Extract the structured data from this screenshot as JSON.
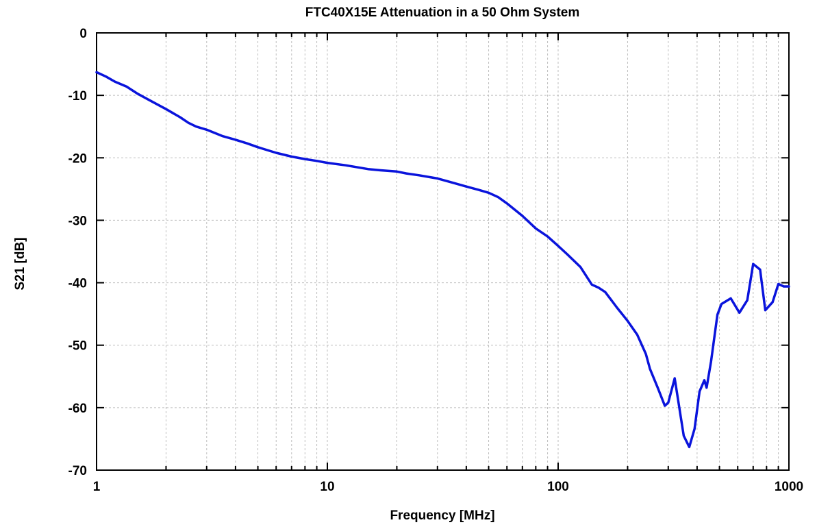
{
  "chart_data": {
    "type": "line",
    "title": "FTC40X15E Attenuation in a 50 Ohm System",
    "xlabel": "Frequency [MHz]",
    "ylabel": "S21 [dB]",
    "x_scale": "log",
    "xlim": [
      1,
      1000
    ],
    "ylim": [
      -70,
      0
    ],
    "x_ticks": [
      1,
      10,
      100,
      1000
    ],
    "x_tick_labels": [
      "1",
      "10",
      "100",
      "1000"
    ],
    "y_ticks": [
      0,
      -10,
      -20,
      -30,
      -40,
      -50,
      -60,
      -70
    ],
    "y_tick_labels": [
      "0",
      "-10",
      "-20",
      "-30",
      "-40",
      "-50",
      "-60",
      "-70"
    ],
    "grid": true,
    "legend": "none",
    "colors": {
      "series": "#0a14dc",
      "grid": "#bdbdbd",
      "axis": "#000000"
    },
    "series": [
      {
        "x": [
          1,
          1.1,
          1.2,
          1.35,
          1.5,
          1.7,
          2,
          2.3,
          2.5,
          2.7,
          3,
          3.5,
          4,
          4.5,
          5,
          6,
          7,
          8,
          9,
          10,
          12,
          15,
          17,
          20,
          22,
          25,
          30,
          35,
          40,
          45,
          50,
          55,
          60,
          70,
          80,
          90,
          100,
          110,
          125,
          140,
          150,
          160,
          180,
          200,
          220,
          240,
          250,
          270,
          290,
          300,
          320,
          350,
          370,
          390,
          410,
          430,
          440,
          460,
          490,
          510,
          560,
          610,
          660,
          700,
          750,
          790,
          850,
          900,
          950,
          1000
        ],
        "y": [
          -6.3,
          -7.0,
          -7.8,
          -8.6,
          -9.7,
          -10.8,
          -12.2,
          -13.5,
          -14.4,
          -15.0,
          -15.5,
          -16.5,
          -17.1,
          -17.7,
          -18.3,
          -19.2,
          -19.8,
          -20.2,
          -20.5,
          -20.8,
          -21.2,
          -21.8,
          -22.0,
          -22.2,
          -22.5,
          -22.8,
          -23.3,
          -24.0,
          -24.6,
          -25.1,
          -25.6,
          -26.3,
          -27.3,
          -29.3,
          -31.3,
          -32.6,
          -34.1,
          -35.5,
          -37.5,
          -40.3,
          -40.8,
          -41.5,
          -44.0,
          -46.1,
          -48.3,
          -51.4,
          -53.8,
          -56.8,
          -59.7,
          -59.2,
          -55.3,
          -64.5,
          -66.3,
          -63.4,
          -57.4,
          -55.6,
          -56.8,
          -52.6,
          -45.1,
          -43.4,
          -42.5,
          -44.8,
          -42.8,
          -37.0,
          -37.9,
          -44.4,
          -43.1,
          -40.2,
          -40.6,
          -40.6
        ]
      }
    ]
  }
}
